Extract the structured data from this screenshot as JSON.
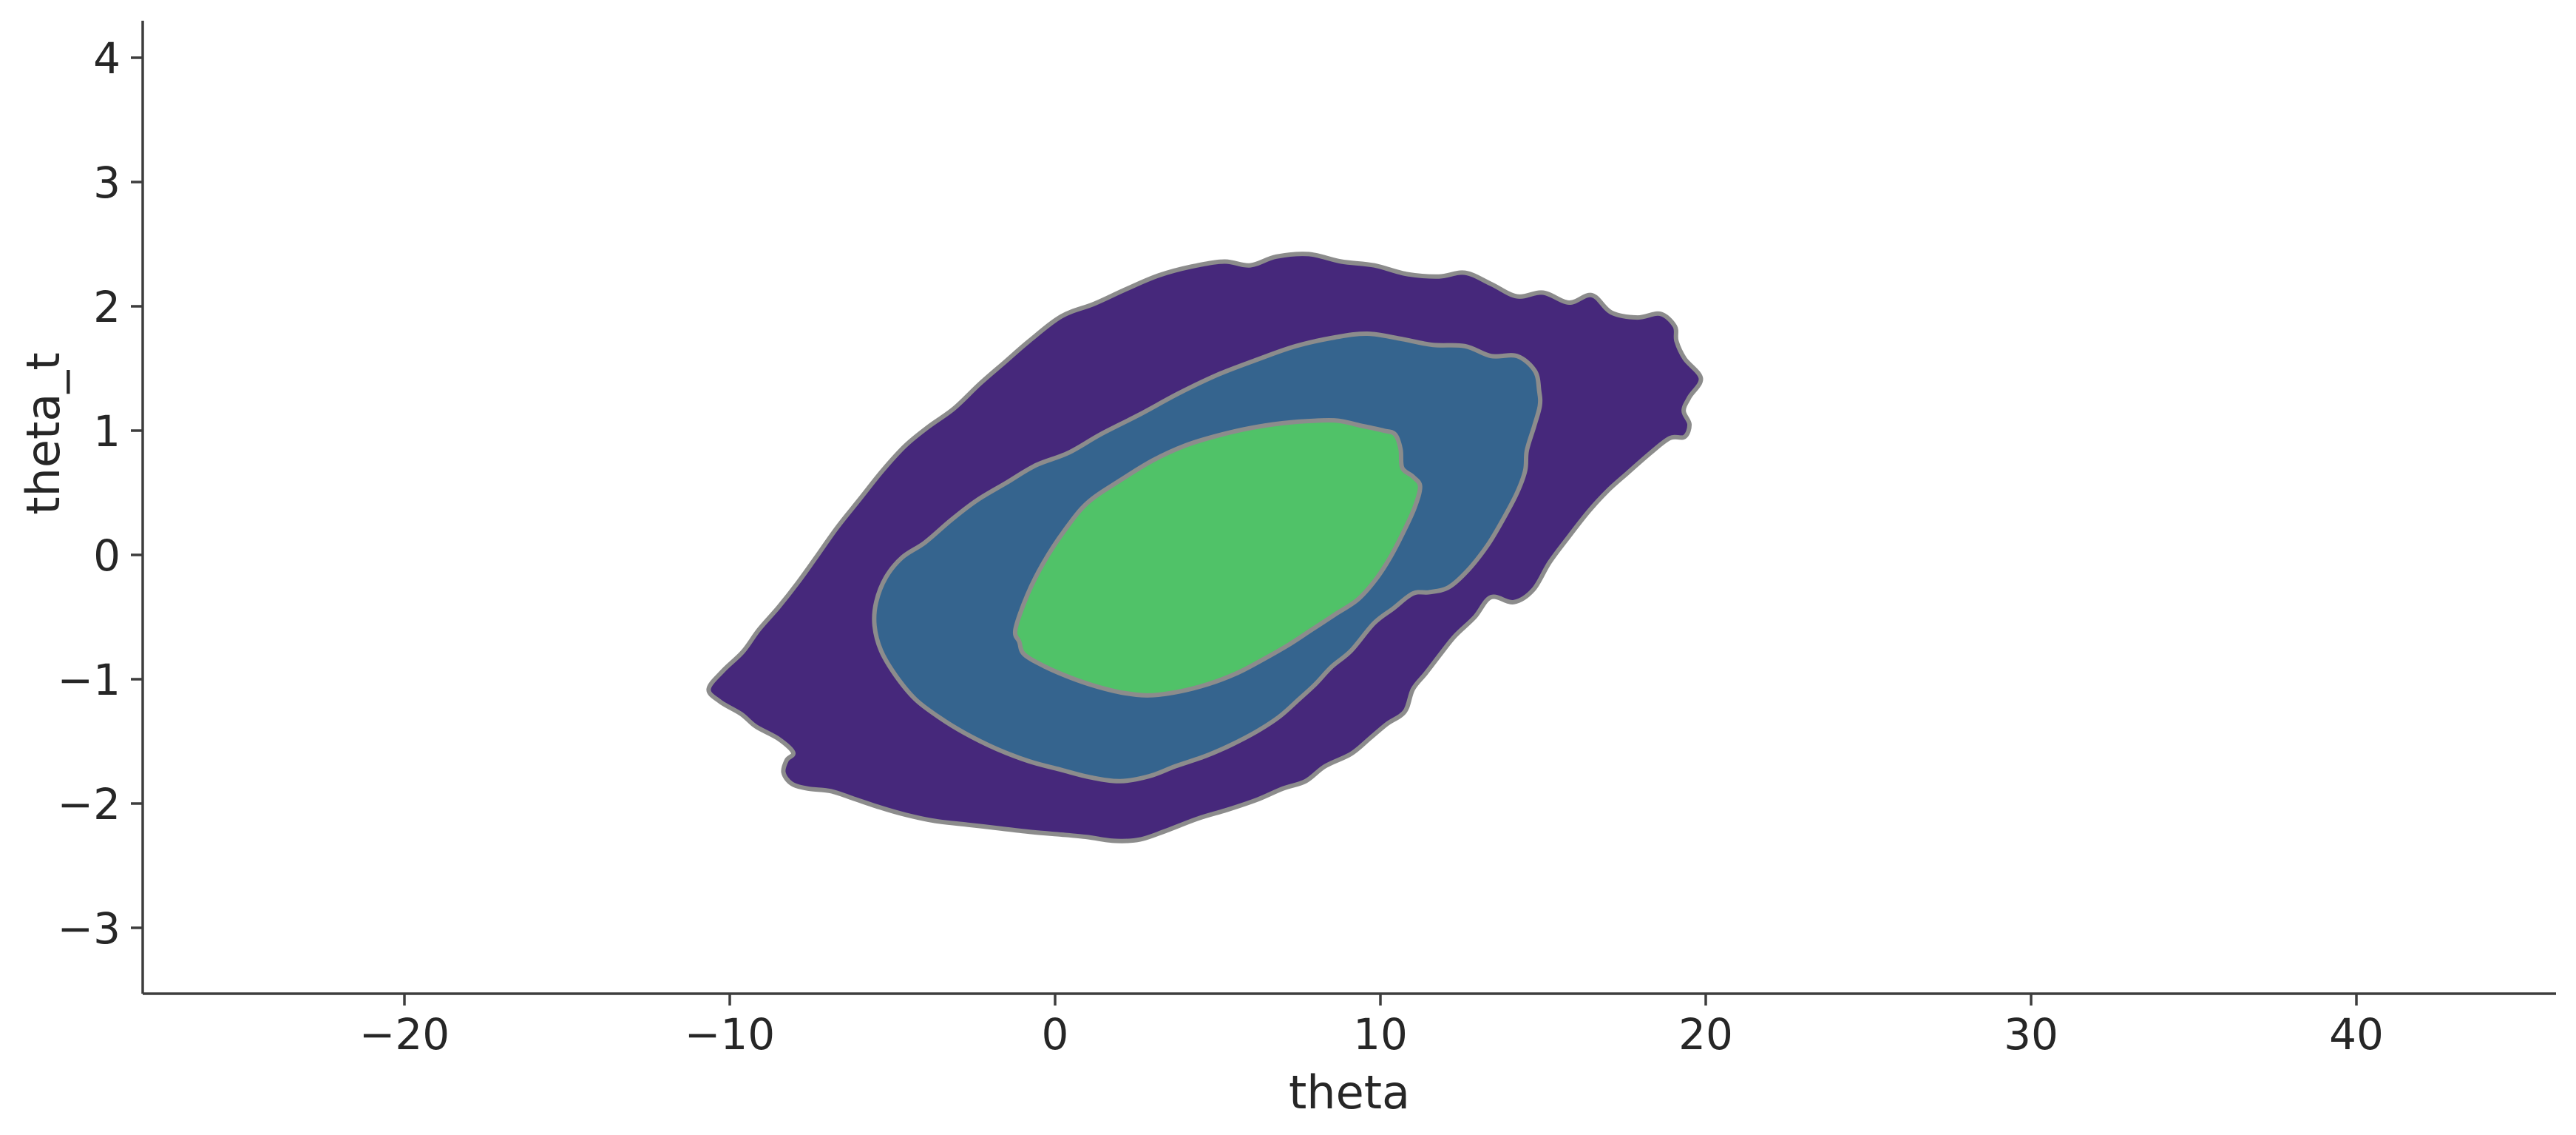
{
  "figure": {
    "background": "#ffffff"
  },
  "chart_data": {
    "type": "contour",
    "subtype": "filled-kde-2d",
    "title": "",
    "xlabel": "theta",
    "ylabel": "theta_t",
    "xlim": [
      -28.05,
      46.14
    ],
    "ylim": [
      -3.53,
      4.3
    ],
    "grid": false,
    "legend": null,
    "x_ticks": [
      {
        "value": -20,
        "label": "−20"
      },
      {
        "value": -10,
        "label": "−10"
      },
      {
        "value": 0,
        "label": "0"
      },
      {
        "value": 10,
        "label": "10"
      },
      {
        "value": 20,
        "label": "20"
      },
      {
        "value": 30,
        "label": "30"
      },
      {
        "value": 40,
        "label": "40"
      }
    ],
    "y_ticks": [
      {
        "value": 4,
        "label": "4"
      },
      {
        "value": 3,
        "label": "3"
      },
      {
        "value": 2,
        "label": "2"
      },
      {
        "value": 1,
        "label": "1"
      },
      {
        "value": 0,
        "label": "0"
      },
      {
        "value": -1,
        "label": "−1"
      },
      {
        "value": -2,
        "label": "−2"
      },
      {
        "value": -3,
        "label": "−3"
      }
    ],
    "style": {
      "contour_line_color": "#8c8c8c",
      "spine_color": "#3d3d3d",
      "text_color": "#262626",
      "background": "#ffffff"
    },
    "levels": [
      {
        "name": "outer-density-band",
        "density_rank": 1,
        "fill": "#46287b",
        "polygon": [
          [
            -0.8,
            1.72
          ],
          [
            0.2,
            1.92
          ],
          [
            1.2,
            2.02
          ],
          [
            2.2,
            2.14
          ],
          [
            3.2,
            2.25
          ],
          [
            4.2,
            2.32
          ],
          [
            5.2,
            2.36
          ],
          [
            6.0,
            2.33
          ],
          [
            6.8,
            2.4
          ],
          [
            7.8,
            2.42
          ],
          [
            8.8,
            2.36
          ],
          [
            9.8,
            2.33
          ],
          [
            10.8,
            2.26
          ],
          [
            11.8,
            2.24
          ],
          [
            12.6,
            2.27
          ],
          [
            13.4,
            2.18
          ],
          [
            14.2,
            2.08
          ],
          [
            15.0,
            2.11
          ],
          [
            15.8,
            2.03
          ],
          [
            16.5,
            2.09
          ],
          [
            17.1,
            1.95
          ],
          [
            17.9,
            1.91
          ],
          [
            18.6,
            1.94
          ],
          [
            19.05,
            1.84
          ],
          [
            19.1,
            1.72
          ],
          [
            19.35,
            1.58
          ],
          [
            19.85,
            1.42
          ],
          [
            19.5,
            1.27
          ],
          [
            19.32,
            1.16
          ],
          [
            19.5,
            1.05
          ],
          [
            19.35,
            0.95
          ],
          [
            18.9,
            0.94
          ],
          [
            18.3,
            0.82
          ],
          [
            17.6,
            0.66
          ],
          [
            17.0,
            0.52
          ],
          [
            16.4,
            0.35
          ],
          [
            15.8,
            0.15
          ],
          [
            15.2,
            -0.06
          ],
          [
            14.7,
            -0.28
          ],
          [
            14.1,
            -0.38
          ],
          [
            13.4,
            -0.34
          ],
          [
            12.9,
            -0.5
          ],
          [
            12.3,
            -0.65
          ],
          [
            11.9,
            -0.78
          ],
          [
            11.4,
            -0.95
          ],
          [
            11.0,
            -1.08
          ],
          [
            10.75,
            -1.26
          ],
          [
            10.2,
            -1.36
          ],
          [
            9.7,
            -1.47
          ],
          [
            9.1,
            -1.6
          ],
          [
            8.3,
            -1.7
          ],
          [
            7.7,
            -1.82
          ],
          [
            7.0,
            -1.88
          ],
          [
            6.2,
            -1.97
          ],
          [
            5.3,
            -2.05
          ],
          [
            4.4,
            -2.12
          ],
          [
            3.4,
            -2.22
          ],
          [
            2.6,
            -2.29
          ],
          [
            1.8,
            -2.3
          ],
          [
            1.0,
            -2.27
          ],
          [
            0.2,
            -2.25
          ],
          [
            -0.7,
            -2.23
          ],
          [
            -1.7,
            -2.2
          ],
          [
            -2.7,
            -2.17
          ],
          [
            -3.7,
            -2.14
          ],
          [
            -4.6,
            -2.09
          ],
          [
            -5.4,
            -2.03
          ],
          [
            -6.2,
            -1.96
          ],
          [
            -6.9,
            -1.9
          ],
          [
            -7.6,
            -1.88
          ],
          [
            -8.1,
            -1.84
          ],
          [
            -8.35,
            -1.75
          ],
          [
            -8.25,
            -1.65
          ],
          [
            -8.05,
            -1.59
          ],
          [
            -8.5,
            -1.48
          ],
          [
            -9.2,
            -1.38
          ],
          [
            -9.65,
            -1.28
          ],
          [
            -10.3,
            -1.18
          ],
          [
            -10.65,
            -1.08
          ],
          [
            -10.2,
            -0.93
          ],
          [
            -9.6,
            -0.78
          ],
          [
            -9.1,
            -0.6
          ],
          [
            -8.5,
            -0.42
          ],
          [
            -7.9,
            -0.22
          ],
          [
            -7.35,
            -0.02
          ],
          [
            -6.7,
            0.22
          ],
          [
            -6.0,
            0.45
          ],
          [
            -5.3,
            0.68
          ],
          [
            -4.6,
            0.88
          ],
          [
            -3.9,
            1.03
          ],
          [
            -3.1,
            1.18
          ],
          [
            -2.3,
            1.38
          ],
          [
            -1.55,
            1.55
          ]
        ]
      },
      {
        "name": "middle-density-band",
        "density_rank": 2,
        "fill": "#35648e",
        "polygon": [
          [
            -0.6,
            0.72
          ],
          [
            0.4,
            0.82
          ],
          [
            1.4,
            0.97
          ],
          [
            2.6,
            1.13
          ],
          [
            3.8,
            1.3
          ],
          [
            5.0,
            1.45
          ],
          [
            6.2,
            1.57
          ],
          [
            7.4,
            1.68
          ],
          [
            8.6,
            1.75
          ],
          [
            9.6,
            1.78
          ],
          [
            10.6,
            1.74
          ],
          [
            11.6,
            1.69
          ],
          [
            12.6,
            1.68
          ],
          [
            13.4,
            1.6
          ],
          [
            14.2,
            1.6
          ],
          [
            14.75,
            1.48
          ],
          [
            14.88,
            1.32
          ],
          [
            14.9,
            1.2
          ],
          [
            14.72,
            1.03
          ],
          [
            14.5,
            0.84
          ],
          [
            14.45,
            0.68
          ],
          [
            14.2,
            0.5
          ],
          [
            13.8,
            0.3
          ],
          [
            13.3,
            0.08
          ],
          [
            12.7,
            -0.12
          ],
          [
            12.1,
            -0.26
          ],
          [
            11.5,
            -0.3
          ],
          [
            11.0,
            -0.31
          ],
          [
            10.4,
            -0.43
          ],
          [
            9.8,
            -0.55
          ],
          [
            9.1,
            -0.77
          ],
          [
            8.5,
            -0.9
          ],
          [
            8.0,
            -1.04
          ],
          [
            7.5,
            -1.16
          ],
          [
            6.9,
            -1.3
          ],
          [
            6.2,
            -1.42
          ],
          [
            5.4,
            -1.53
          ],
          [
            4.6,
            -1.62
          ],
          [
            3.7,
            -1.7
          ],
          [
            2.9,
            -1.78
          ],
          [
            2.0,
            -1.82
          ],
          [
            1.1,
            -1.79
          ],
          [
            0.2,
            -1.73
          ],
          [
            -0.8,
            -1.66
          ],
          [
            -1.8,
            -1.56
          ],
          [
            -2.8,
            -1.43
          ],
          [
            -3.6,
            -1.3
          ],
          [
            -4.3,
            -1.16
          ],
          [
            -4.9,
            -0.97
          ],
          [
            -5.35,
            -0.77
          ],
          [
            -5.55,
            -0.57
          ],
          [
            -5.5,
            -0.38
          ],
          [
            -5.2,
            -0.18
          ],
          [
            -4.7,
            -0.02
          ],
          [
            -4.0,
            0.1
          ],
          [
            -3.2,
            0.28
          ],
          [
            -2.4,
            0.44
          ],
          [
            -1.5,
            0.58
          ]
        ]
      },
      {
        "name": "inner-density-band",
        "density_rank": 3,
        "fill": "#50c268",
        "polygon": [
          [
            -1.22,
            -0.6
          ],
          [
            -0.85,
            -0.32
          ],
          [
            -0.35,
            -0.06
          ],
          [
            0.3,
            0.2
          ],
          [
            1.0,
            0.42
          ],
          [
            2.0,
            0.6
          ],
          [
            3.0,
            0.76
          ],
          [
            4.0,
            0.88
          ],
          [
            5.0,
            0.96
          ],
          [
            6.0,
            1.02
          ],
          [
            7.0,
            1.06
          ],
          [
            8.0,
            1.08
          ],
          [
            8.7,
            1.08
          ],
          [
            9.4,
            1.04
          ],
          [
            10.1,
            1.0
          ],
          [
            10.45,
            0.97
          ],
          [
            10.62,
            0.85
          ],
          [
            10.67,
            0.7
          ],
          [
            11.0,
            0.63
          ],
          [
            11.22,
            0.55
          ],
          [
            11.05,
            0.38
          ],
          [
            10.7,
            0.18
          ],
          [
            10.3,
            -0.02
          ],
          [
            9.85,
            -0.2
          ],
          [
            9.3,
            -0.36
          ],
          [
            8.6,
            -0.48
          ],
          [
            7.9,
            -0.6
          ],
          [
            7.2,
            -0.72
          ],
          [
            6.4,
            -0.84
          ],
          [
            5.6,
            -0.95
          ],
          [
            4.7,
            -1.04
          ],
          [
            3.8,
            -1.1
          ],
          [
            2.9,
            -1.13
          ],
          [
            2.1,
            -1.11
          ],
          [
            1.3,
            -1.06
          ],
          [
            0.5,
            -0.99
          ],
          [
            -0.3,
            -0.9
          ],
          [
            -0.95,
            -0.8
          ],
          [
            -1.1,
            -0.7
          ]
        ]
      }
    ]
  }
}
